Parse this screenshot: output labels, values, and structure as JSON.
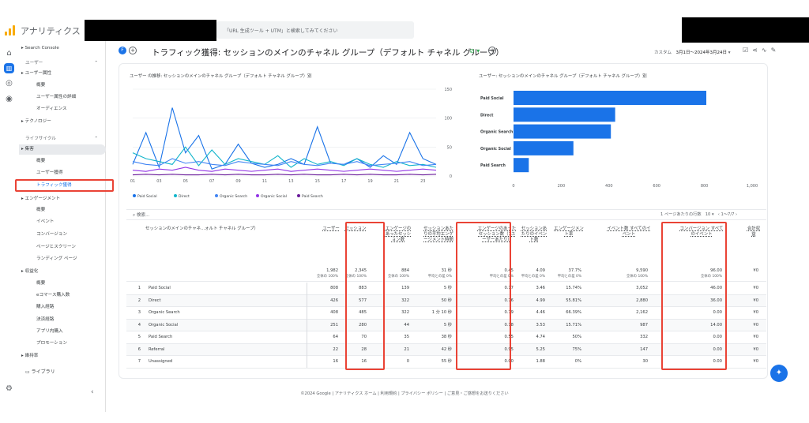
{
  "app": {
    "title": "アナリティクス",
    "search_placeholder": "「URL 生成ツール + UTM」と検索してみてください"
  },
  "nav": {
    "items": [
      {
        "label": "Search Console",
        "type": "group"
      },
      {
        "label": "ユーザー",
        "type": "section"
      },
      {
        "label": "ユーザー属性",
        "type": "group"
      },
      {
        "label": "概要",
        "type": "sub"
      },
      {
        "label": "ユーザー属性の詳細",
        "type": "sub"
      },
      {
        "label": "オーディエンス",
        "type": "sub"
      },
      {
        "label": "テクノロジー",
        "type": "group"
      },
      {
        "label": "ライフサイクル",
        "type": "section"
      },
      {
        "label": "集客",
        "type": "group"
      },
      {
        "label": "概要",
        "type": "sub"
      },
      {
        "label": "ユーザー獲得",
        "type": "sub"
      },
      {
        "label": "トラフィック獲得",
        "type": "sub"
      },
      {
        "label": "エンゲージメント",
        "type": "group"
      },
      {
        "label": "概要",
        "type": "sub"
      },
      {
        "label": "イベント",
        "type": "sub"
      },
      {
        "label": "コンバージョン",
        "type": "sub"
      },
      {
        "label": "ページとスクリーン",
        "type": "sub"
      },
      {
        "label": "ランディング ページ",
        "type": "sub"
      },
      {
        "label": "収益化",
        "type": "group"
      },
      {
        "label": "概要",
        "type": "sub"
      },
      {
        "label": "eコマース購入数",
        "type": "sub"
      },
      {
        "label": "購入経路",
        "type": "sub"
      },
      {
        "label": "決済経路",
        "type": "sub"
      },
      {
        "label": "アプリ内購入",
        "type": "sub"
      },
      {
        "label": "プロモーション",
        "type": "sub"
      },
      {
        "label": "維持率",
        "type": "group"
      }
    ],
    "library": "ライブラリ"
  },
  "header": {
    "title": "トラフィック獲得: セッションのメインのチャネル グループ（デフォルト チャネル グループ）",
    "range_label": "カスタム",
    "range": "3月1日～2024年3月24日"
  },
  "line_chart": {
    "title": "ユーザー の推移: セッションのメインのチャネル グループ（デフォルト チャネル グループ）別"
  },
  "bar_chart": {
    "title": "ユーザー: セッションのメインのチャネル グループ（デフォルト チャネル グループ）別"
  },
  "chart_data": [
    {
      "type": "line",
      "x": [
        "01",
        "02",
        "03",
        "04",
        "05",
        "06",
        "07",
        "08",
        "09",
        "10",
        "11",
        "12",
        "13",
        "14",
        "15",
        "16",
        "17",
        "18",
        "19",
        "20",
        "21",
        "22",
        "23",
        "24"
      ],
      "x_ticks": [
        "01 3月",
        "03",
        "05",
        "07",
        "09",
        "11",
        "13",
        "15",
        "17",
        "19",
        "21",
        "23"
      ],
      "ylim": [
        0,
        150
      ],
      "y_ticks": [
        "150",
        "100",
        "50",
        "0"
      ],
      "grid": true,
      "legend": "bottom",
      "series": [
        {
          "name": "Paid Social",
          "color": "#1a73e8",
          "values": [
            20,
            75,
            15,
            118,
            40,
            70,
            12,
            20,
            55,
            22,
            15,
            20,
            30,
            20,
            85,
            22,
            20,
            30,
            15,
            35,
            20,
            75,
            30,
            20
          ]
        },
        {
          "name": "Direct",
          "color": "#12b5cb",
          "values": [
            40,
            30,
            25,
            20,
            50,
            18,
            45,
            20,
            30,
            25,
            20,
            35,
            15,
            30,
            20,
            25,
            18,
            30,
            20,
            15,
            25,
            18,
            20,
            15
          ]
        },
        {
          "name": "Organic Search",
          "color": "#4285f4",
          "values": [
            25,
            20,
            18,
            30,
            22,
            25,
            20,
            18,
            25,
            22,
            20,
            18,
            25,
            20,
            18,
            22,
            20,
            25,
            18,
            20,
            22,
            25,
            18,
            20
          ]
        },
        {
          "name": "Organic Social",
          "color": "#9334e6",
          "values": [
            10,
            8,
            12,
            10,
            15,
            10,
            8,
            12,
            10,
            8,
            10,
            12,
            8,
            10,
            12,
            10,
            8,
            10,
            12,
            10,
            8,
            10,
            12,
            10
          ]
        },
        {
          "name": "Paid Search",
          "color": "#6a1b9a",
          "values": [
            2,
            3,
            2,
            3,
            2,
            2,
            3,
            2,
            3,
            2,
            2,
            3,
            2,
            3,
            2,
            2,
            3,
            2,
            3,
            2,
            2,
            3,
            2,
            3
          ]
        }
      ]
    },
    {
      "type": "bar",
      "orientation": "horizontal",
      "categories": [
        "Paid Social",
        "Direct",
        "Organic Search",
        "Organic Social",
        "Paid Search"
      ],
      "values": [
        808,
        426,
        408,
        251,
        64
      ],
      "xlim": [
        0,
        1000
      ],
      "x_ticks": [
        "0",
        "200",
        "400",
        "600",
        "800",
        "1,000"
      ],
      "color": "#1a73e8"
    }
  ],
  "table": {
    "search_placeholder": "検索...",
    "rows_per_page_label": "1 ページあたりの行数",
    "rows_per_page": "10",
    "pagination": "1〜7/7",
    "dim_header": "セッションのメインのチャネ...ォルト チャネル グループ）",
    "columns": [
      "ユーザー",
      "セッション",
      "エンゲージのあったセッション数",
      "セッションあたりの平均エンゲージメント時間",
      "エンゲージのあったセッション数（1ユーザーあたり）",
      "セッションあたりのイベント数",
      "エンゲージメント率",
      "イベント数 すべてのイベント",
      "コンバージョン すべてのイベント",
      "合計収益"
    ],
    "totals": [
      "1,982",
      "2,345",
      "884",
      "31 秒",
      "0.45",
      "4.09",
      "37.7%",
      "9,590",
      "96.00",
      "¥0"
    ],
    "totals_sub": [
      "全体の 100%",
      "全体の 100%",
      "全体の 100%",
      "平均との差 0%",
      "平均との差 0%",
      "平均との差 0%",
      "平均との差 0%",
      "全体の 100%",
      "全体の 100%",
      ""
    ],
    "rows": [
      {
        "n": "1",
        "name": "Paid Social",
        "v": [
          "808",
          "883",
          "139",
          "5 秒",
          "0.17",
          "3.46",
          "15.74%",
          "3,052",
          "46.00",
          "¥0"
        ]
      },
      {
        "n": "2",
        "name": "Direct",
        "v": [
          "426",
          "577",
          "322",
          "50 秒",
          "0.76",
          "4.99",
          "55.81%",
          "2,880",
          "36.00",
          "¥0"
        ]
      },
      {
        "n": "3",
        "name": "Organic Search",
        "v": [
          "408",
          "485",
          "322",
          "1 分 10 秒",
          "0.79",
          "4.46",
          "66.39%",
          "2,162",
          "0.00",
          "¥0"
        ]
      },
      {
        "n": "4",
        "name": "Organic Social",
        "v": [
          "251",
          "280",
          "44",
          "5 秒",
          "0.18",
          "3.53",
          "15.71%",
          "987",
          "14.00",
          "¥0"
        ]
      },
      {
        "n": "5",
        "name": "Paid Search",
        "v": [
          "64",
          "70",
          "35",
          "38 秒",
          "0.55",
          "4.74",
          "50%",
          "332",
          "0.00",
          "¥0"
        ]
      },
      {
        "n": "6",
        "name": "Referral",
        "v": [
          "22",
          "28",
          "21",
          "42 秒",
          "0.95",
          "5.25",
          "75%",
          "147",
          "0.00",
          "¥0"
        ]
      },
      {
        "n": "7",
        "name": "Unassigned",
        "v": [
          "16",
          "16",
          "0",
          "55 秒",
          "0.00",
          "1.88",
          "0%",
          "30",
          "0.00",
          "¥0"
        ]
      }
    ]
  },
  "footer": "©2024 Google | アナリティクス ホーム | 利用規約 | プライバシー ポリシー | ご意見・ご感想をお送りください"
}
